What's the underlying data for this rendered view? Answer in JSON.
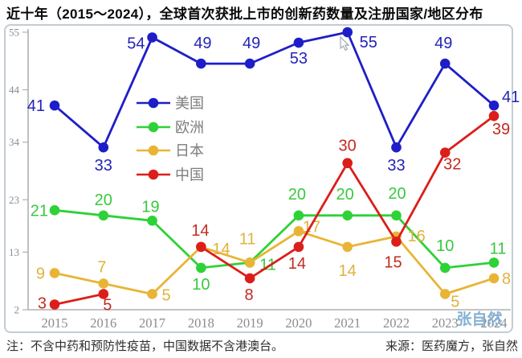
{
  "title": "近十年（2015～2024），全球首次获批上市的创新药数量及注册国家/地区分布",
  "watermark": "张自然",
  "notes": {
    "left": "注：不含中药和预防性疫苗，中国数据不含港澳台。",
    "right": "来源：医药魔方，张自然"
  },
  "chart_data": {
    "type": "line",
    "title": "近十年（2015～2024），全球首次获批上市的创新药数量及注册国家/地区分布",
    "categories": [
      "2015",
      "2016",
      "2017",
      "2018",
      "2019",
      "2020",
      "2021",
      "2022",
      "2023",
      "2024"
    ],
    "series": [
      {
        "name": "美国",
        "color": "#1E1EC8",
        "label_color": "#2424B6",
        "values": [
          41,
          33,
          54,
          49,
          49,
          53,
          55,
          33,
          49,
          41
        ]
      },
      {
        "name": "欧洲",
        "color": "#2DD236",
        "label_color": "#38C83E",
        "values": [
          21,
          20,
          19,
          10,
          11,
          20,
          20,
          20,
          10,
          11
        ]
      },
      {
        "name": "日本",
        "color": "#E9B435",
        "label_color": "#E0B23E",
        "values": [
          9,
          7,
          5,
          14,
          11,
          17,
          14,
          16,
          5,
          8
        ]
      },
      {
        "name": "中国",
        "color": "#DC1E1A",
        "label_color": "#C22B22",
        "values": [
          3,
          5,
          null,
          14,
          8,
          14,
          30,
          15,
          32,
          39
        ]
      }
    ],
    "yticks": [
      2,
      13,
      23,
      34,
      44,
      55
    ],
    "ylim": [
      2,
      55
    ],
    "grid": false,
    "legend_position": "inside-left",
    "xlabel": "",
    "ylabel": ""
  }
}
